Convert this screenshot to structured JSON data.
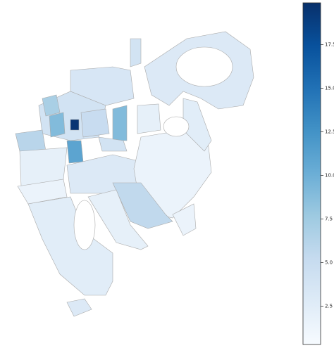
{
  "chart_data": {
    "type": "choropleth",
    "colormap": "Blues",
    "values": [
      3,
      4,
      3.5,
      4,
      6,
      19.5,
      11,
      9,
      2,
      2,
      1.5,
      3,
      1.5,
      2.5,
      5.5,
      2.5,
      2,
      3,
      1.5,
      7,
      9,
      5,
      4
    ],
    "clim": [
      0.3,
      19.9
    ],
    "cticks": [
      2.5,
      {
        "value": 5,
        "label": "5.0"
      },
      7.5,
      {
        "value": 10,
        "label": "10.0"
      },
      12.5,
      {
        "value": 15,
        "label": "15.0"
      },
      17.5
    ]
  }
}
